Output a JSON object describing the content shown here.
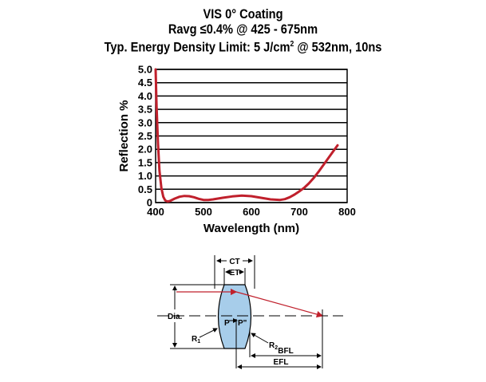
{
  "title": {
    "line1": "VIS 0° Coating",
    "line2": "Ravg ≤0.4% @ 425 - 675nm",
    "line3_main": "Typ. Energy Density Limit: 5 J/cm",
    "line3_sup": "2",
    "line3_end": " @ 532nm, 10ns"
  },
  "chart_data": {
    "type": "line",
    "xlabel": "Wavelength (nm)",
    "ylabel": "Reflection %",
    "xlim": [
      400,
      800
    ],
    "ylim": [
      0,
      5
    ],
    "x_ticks": [
      "400",
      "500",
      "600",
      "700",
      "800"
    ],
    "y_ticks": [
      "0",
      "0.5",
      "1.0",
      "1.5",
      "2.0",
      "2.5",
      "3.0",
      "3.5",
      "4.0",
      "4.5",
      "5.0"
    ],
    "grid": "horizontal",
    "series": [
      {
        "color": "#c0202c",
        "x": [
          400,
          402,
          405,
          408,
          412,
          416,
          420,
          425,
          430,
          440,
          450,
          460,
          470,
          480,
          490,
          500,
          510,
          520,
          540,
          560,
          580,
          600,
          620,
          640,
          660,
          670,
          680,
          690,
          700,
          710,
          720,
          730,
          740,
          750,
          760,
          770,
          780
        ],
        "y": [
          5.0,
          3.6,
          2.2,
          1.2,
          0.55,
          0.22,
          0.08,
          0.04,
          0.06,
          0.15,
          0.22,
          0.25,
          0.24,
          0.2,
          0.14,
          0.1,
          0.1,
          0.12,
          0.18,
          0.23,
          0.26,
          0.24,
          0.18,
          0.12,
          0.1,
          0.13,
          0.2,
          0.3,
          0.42,
          0.55,
          0.72,
          0.92,
          1.15,
          1.4,
          1.65,
          1.9,
          2.15
        ]
      }
    ]
  },
  "diagram": {
    "labels": {
      "ct": "CT",
      "et": "ET",
      "dia": "Dia.",
      "p": "P",
      "p_prime": "P\"",
      "r1": "R",
      "r1_sub": "1",
      "r2": "R",
      "r2_sub": "2",
      "bfl": "BFL",
      "efl": "EFL"
    },
    "colors": {
      "lens_fill": "#a7cdea",
      "ray": "#c0202c"
    }
  }
}
